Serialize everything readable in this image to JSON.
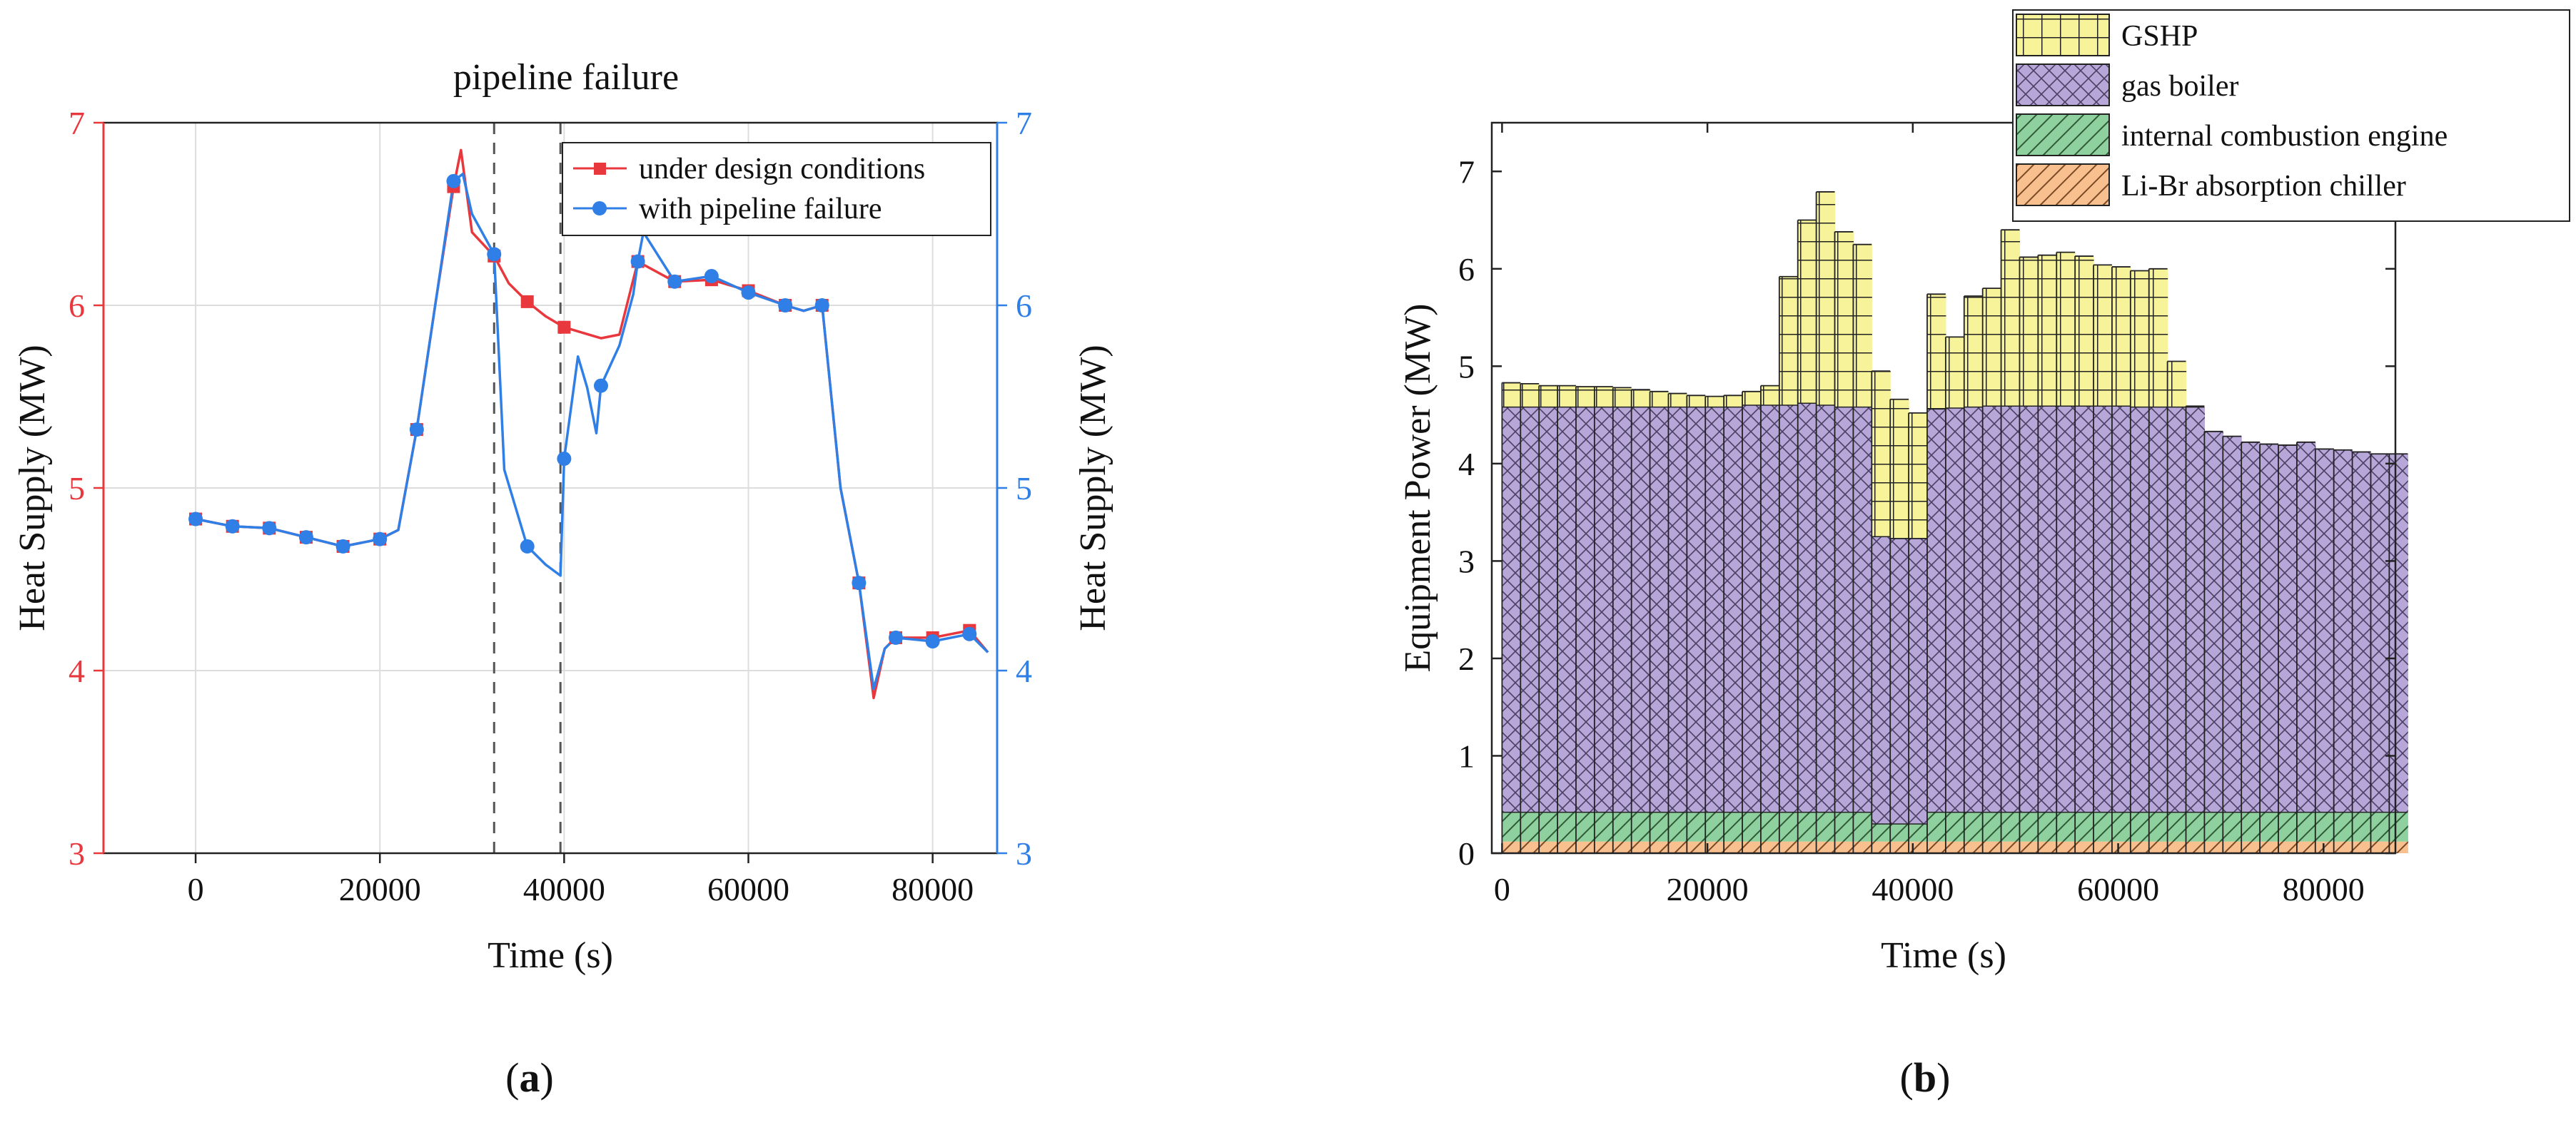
{
  "chart_data": [
    {
      "type": "line",
      "panel_label": "a",
      "title": "pipeline failure",
      "xlabel": "Time (s)",
      "ylabel_left": "Heat Supply (MW)",
      "ylabel_right": "Heat Supply (MW)",
      "xlim": [
        -10000,
        87000
      ],
      "ylim": [
        3,
        7
      ],
      "xticks": [
        "0",
        "20000",
        "40000",
        "60000",
        "80000"
      ],
      "yticks": [
        "3",
        "4",
        "5",
        "6",
        "7"
      ],
      "left_axis_color": "#e8383d",
      "right_axis_color": "#2f7fe6",
      "vlines": [
        32400,
        39600
      ],
      "legend": [
        "under design conditions",
        "with pipeline failure"
      ],
      "series": [
        {
          "name": "under design conditions",
          "color": "#e8383d",
          "marker": "square",
          "x": [
            0,
            4000,
            8000,
            12000,
            16000,
            20000,
            22000,
            24000,
            26000,
            28000,
            28800,
            30000,
            32400,
            34000,
            36000,
            38000,
            40000,
            42000,
            44000,
            46000,
            48000,
            52000,
            56000,
            60000,
            64000,
            66000,
            68000,
            70000,
            72000,
            73600,
            74800,
            76000,
            80000,
            84000,
            86000
          ],
          "y": [
            4.83,
            4.79,
            4.78,
            4.73,
            4.68,
            4.72,
            4.77,
            5.32,
            6.0,
            6.65,
            6.85,
            6.4,
            6.27,
            6.12,
            6.02,
            5.94,
            5.88,
            5.85,
            5.82,
            5.84,
            6.24,
            6.13,
            6.14,
            6.08,
            6.0,
            5.97,
            6.0,
            5.0,
            4.48,
            3.85,
            4.12,
            4.18,
            4.18,
            4.22,
            4.1
          ],
          "marker_x": [
            0,
            4000,
            8000,
            12000,
            16000,
            20000,
            24000,
            28000,
            32400,
            36000,
            40000,
            48000,
            52000,
            56000,
            60000,
            64000,
            68000,
            72000,
            76000,
            80000,
            84000
          ],
          "marker_y": [
            4.83,
            4.79,
            4.78,
            4.73,
            4.68,
            4.72,
            5.32,
            6.65,
            6.27,
            6.02,
            5.88,
            6.24,
            6.13,
            6.14,
            6.08,
            6.0,
            6.0,
            4.48,
            4.18,
            4.18,
            4.22
          ]
        },
        {
          "name": "with pipeline failure",
          "color": "#2f7fe6",
          "marker": "circle",
          "x": [
            0,
            4000,
            8000,
            12000,
            16000,
            20000,
            22000,
            24000,
            26000,
            28000,
            29000,
            30000,
            32400,
            33500,
            36000,
            38000,
            39600,
            40000,
            41500,
            42500,
            43500,
            44000,
            46000,
            47500,
            48000,
            48600,
            52000,
            56000,
            60000,
            64000,
            66000,
            68000,
            70000,
            72000,
            73600,
            74800,
            76000,
            80000,
            84000,
            86000
          ],
          "y": [
            4.83,
            4.79,
            4.78,
            4.73,
            4.68,
            4.72,
            4.77,
            5.32,
            6.0,
            6.68,
            6.72,
            6.5,
            6.28,
            5.1,
            4.68,
            4.58,
            4.52,
            5.16,
            5.72,
            5.55,
            5.3,
            5.56,
            5.78,
            6.06,
            6.24,
            6.4,
            6.13,
            6.16,
            6.07,
            6.0,
            5.97,
            6.0,
            5.0,
            4.48,
            3.9,
            4.12,
            4.18,
            4.16,
            4.2,
            4.1
          ],
          "marker_x": [
            0,
            4000,
            8000,
            12000,
            16000,
            20000,
            24000,
            28000,
            32400,
            36000,
            40000,
            44000,
            48000,
            52000,
            56000,
            60000,
            64000,
            68000,
            72000,
            76000,
            80000,
            84000
          ],
          "marker_y": [
            4.83,
            4.79,
            4.78,
            4.73,
            4.68,
            4.72,
            5.32,
            6.68,
            6.28,
            4.68,
            5.16,
            5.56,
            6.24,
            6.13,
            6.16,
            6.07,
            6.0,
            6.0,
            4.48,
            4.18,
            4.16,
            4.2
          ]
        }
      ]
    },
    {
      "type": "area",
      "subtype": "stacked-step",
      "panel_label": "b",
      "xlabel": "Time (s)",
      "ylabel": "Equipment Power (MW)",
      "xlim": [
        -1000,
        87000
      ],
      "ylim": [
        0,
        7.5
      ],
      "xticks": [
        "0",
        "20000",
        "40000",
        "60000",
        "80000"
      ],
      "yticks": [
        "0",
        "1",
        "2",
        "3",
        "4",
        "5",
        "6",
        "7"
      ],
      "bin_width": 1800,
      "legend": [
        "GSHP",
        "gas boiler",
        "internal combustion engine",
        "Li-Br absorption chiller"
      ],
      "stack_order": [
        "Li-Br absorption chiller",
        "internal combustion engine",
        "gas boiler",
        "GSHP"
      ],
      "series_colors": {
        "GSHP": "#f6f39b",
        "gas boiler": "#b7a6d8",
        "internal combustion engine": "#8fd19e",
        "Li-Br absorption chiller": "#f8bf8f"
      },
      "total_power": [
        4.83,
        4.82,
        4.8,
        4.8,
        4.79,
        4.79,
        4.78,
        4.76,
        4.74,
        4.72,
        4.7,
        4.69,
        4.7,
        4.74,
        4.8,
        5.92,
        6.5,
        6.79,
        6.38,
        6.25,
        4.95,
        4.66,
        4.52,
        5.74,
        5.3,
        5.72,
        5.8,
        6.4,
        6.12,
        6.14,
        6.17,
        6.13,
        6.04,
        6.02,
        5.98,
        6.0,
        5.05,
        4.59,
        4.33,
        4.28,
        4.22,
        4.2,
        4.19,
        4.22,
        4.15,
        4.14,
        4.12,
        4.1,
        4.1
      ],
      "boiler_top": [
        4.58,
        4.58,
        4.58,
        4.58,
        4.58,
        4.58,
        4.58,
        4.58,
        4.58,
        4.58,
        4.58,
        4.58,
        4.58,
        4.6,
        4.6,
        4.6,
        4.62,
        4.6,
        4.58,
        4.58,
        3.25,
        3.23,
        3.23,
        4.56,
        4.57,
        4.58,
        4.59,
        4.59,
        4.59,
        4.59,
        4.59,
        4.59,
        4.59,
        4.59,
        4.58,
        4.58,
        4.58,
        4.58,
        4.33,
        4.28,
        4.22,
        4.2,
        4.19,
        4.22,
        4.15,
        4.14,
        4.12,
        4.1,
        4.1
      ],
      "engine_top": [
        0.42,
        0.42,
        0.42,
        0.42,
        0.42,
        0.42,
        0.42,
        0.42,
        0.42,
        0.42,
        0.42,
        0.42,
        0.42,
        0.42,
        0.42,
        0.42,
        0.42,
        0.42,
        0.42,
        0.42,
        0.3,
        0.3,
        0.3,
        0.42,
        0.42,
        0.42,
        0.42,
        0.42,
        0.42,
        0.42,
        0.42,
        0.42,
        0.42,
        0.42,
        0.42,
        0.42,
        0.42,
        0.42,
        0.42,
        0.42,
        0.42,
        0.42,
        0.42,
        0.42,
        0.42,
        0.42,
        0.42,
        0.42,
        0.42
      ],
      "chiller_top": [
        0.12,
        0.12,
        0.12,
        0.12,
        0.12,
        0.12,
        0.12,
        0.12,
        0.12,
        0.12,
        0.12,
        0.12,
        0.12,
        0.12,
        0.12,
        0.12,
        0.12,
        0.12,
        0.12,
        0.12,
        0.12,
        0.12,
        0.12,
        0.12,
        0.12,
        0.12,
        0.12,
        0.12,
        0.12,
        0.12,
        0.12,
        0.12,
        0.12,
        0.12,
        0.12,
        0.12,
        0.12,
        0.12,
        0.12,
        0.12,
        0.12,
        0.12,
        0.12,
        0.12,
        0.12,
        0.12,
        0.12,
        0.12,
        0.12
      ]
    }
  ]
}
